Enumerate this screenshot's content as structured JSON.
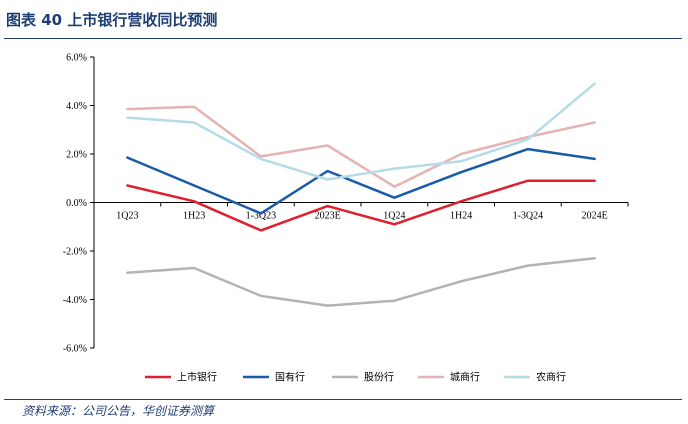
{
  "header": {
    "title": "图表 40  上市银行营收同比预测"
  },
  "footer": {
    "source": "资料来源：公司公告，华创证券测算"
  },
  "chart_data": {
    "type": "line",
    "categories": [
      "1Q23",
      "1H23",
      "1-3Q23",
      "2023E",
      "1Q24",
      "1H24",
      "1-3Q24",
      "2024E"
    ],
    "y_tick_labels": [
      "6.0%",
      "4.0%",
      "2.0%",
      "0.0%",
      "-2.0%",
      "-4.0%",
      "-6.0%"
    ],
    "ylim": [
      -6,
      6
    ],
    "unit": "%",
    "grid": false,
    "legend_position": "bottom",
    "series": [
      {
        "name": "上市银行",
        "color": "#e0202e",
        "values": [
          0.7,
          0.05,
          -1.15,
          -0.15,
          -0.9,
          0.05,
          0.9,
          0.9
        ]
      },
      {
        "name": "国有行",
        "color": "#1a5aa8",
        "values": [
          1.85,
          0.7,
          -0.45,
          1.3,
          0.2,
          1.25,
          2.2,
          1.8
        ]
      },
      {
        "name": "股份行",
        "color": "#b3b3b3",
        "values": [
          -2.9,
          -2.7,
          -3.85,
          -4.25,
          -4.05,
          -3.25,
          -2.6,
          -2.3
        ]
      },
      {
        "name": "城商行",
        "color": "#e6b3b3",
        "values": [
          3.85,
          3.95,
          1.9,
          2.35,
          0.65,
          2.0,
          2.7,
          3.3
        ]
      },
      {
        "name": "农商行",
        "color": "#b6dbe8",
        "values": [
          3.5,
          3.3,
          1.8,
          0.95,
          1.4,
          1.7,
          2.6,
          4.9
        ]
      }
    ]
  }
}
